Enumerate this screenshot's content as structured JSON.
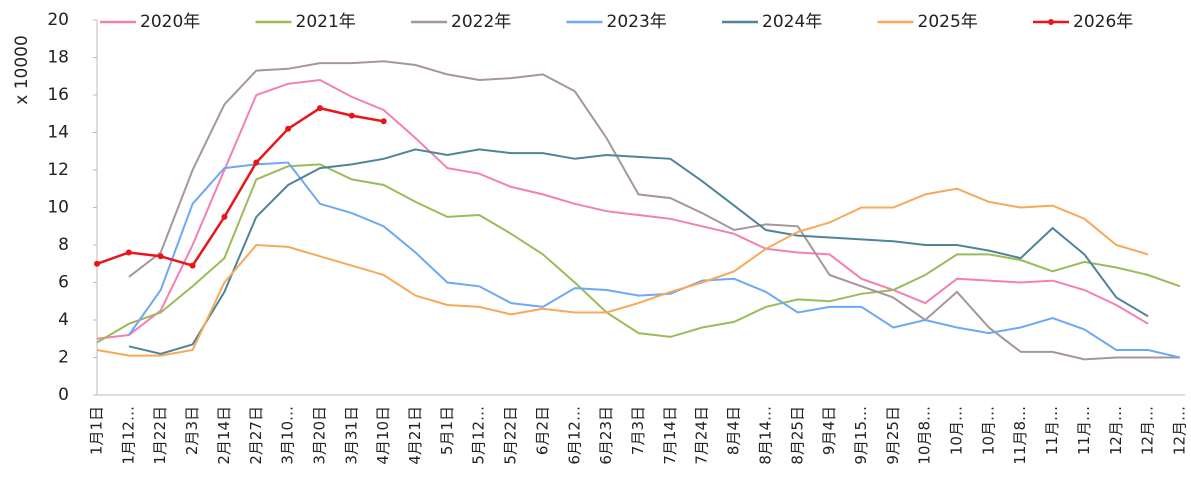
{
  "chart_data": {
    "type": "line",
    "y_axis_label": "x 10000",
    "categories": [
      "1月1日",
      "1月12…",
      "1月22日",
      "2月3日",
      "2月14日",
      "2月27日",
      "3月10…",
      "3月20日",
      "3月31日",
      "4月10日",
      "4月21日",
      "5月1日",
      "5月12…",
      "5月22日",
      "6月2日",
      "6月12…",
      "6月23日",
      "7月3日",
      "7月14日",
      "7月24日",
      "8月4日",
      "8月14…",
      "8月25日",
      "9月4日",
      "9月15…",
      "9月25日",
      "10月8…",
      "10月…",
      "10月…",
      "11月8…",
      "11月…",
      "11月…",
      "12月…",
      "12月…",
      "12月…"
    ],
    "series": [
      {
        "name": "2020年",
        "color": "#f47fb5",
        "markers": false,
        "values": [
          3.0,
          3.2,
          4.5,
          8.0,
          12.0,
          16.0,
          16.6,
          16.8,
          15.9,
          15.2,
          13.7,
          12.1,
          11.8,
          11.1,
          10.7,
          10.2,
          9.8,
          9.6,
          9.4,
          9.0,
          8.6,
          7.8,
          7.6,
          7.5,
          6.2,
          5.6,
          4.9,
          6.2,
          6.1,
          6.0,
          6.1,
          5.6,
          4.8,
          3.8,
          null
        ]
      },
      {
        "name": "2021年",
        "color": "#9bbb59",
        "markers": false,
        "values": [
          2.8,
          3.8,
          4.4,
          5.8,
          7.3,
          11.5,
          12.2,
          12.3,
          11.5,
          11.2,
          10.3,
          9.5,
          9.6,
          8.6,
          7.5,
          6.0,
          4.4,
          3.3,
          3.1,
          3.6,
          3.9,
          4.7,
          5.1,
          5.0,
          5.4,
          5.6,
          6.4,
          7.5,
          7.5,
          7.2,
          6.6,
          7.1,
          6.8,
          6.4,
          5.8
        ]
      },
      {
        "name": "2022年",
        "color": "#a6969b",
        "markers": false,
        "values": [
          null,
          6.3,
          7.6,
          12.0,
          15.5,
          17.3,
          17.4,
          17.7,
          17.7,
          17.8,
          17.6,
          17.1,
          16.8,
          16.9,
          17.1,
          16.2,
          13.7,
          10.7,
          10.5,
          9.7,
          8.8,
          9.1,
          9.0,
          6.4,
          5.8,
          5.2,
          4.0,
          5.5,
          3.6,
          2.3,
          2.3,
          1.9,
          2.0,
          2.0,
          2.0
        ]
      },
      {
        "name": "2023年",
        "color": "#6fa8f5",
        "markers": false,
        "values": [
          null,
          3.2,
          5.6,
          10.2,
          12.1,
          12.3,
          12.4,
          10.2,
          9.7,
          9.0,
          7.6,
          6.0,
          5.8,
          4.9,
          4.7,
          5.7,
          5.6,
          5.3,
          5.4,
          6.1,
          6.2,
          5.5,
          4.4,
          4.7,
          4.7,
          3.6,
          4.0,
          3.6,
          3.3,
          3.6,
          4.1,
          3.5,
          2.4,
          2.4,
          2.0
        ]
      },
      {
        "name": "2024年",
        "color": "#4e8597",
        "markers": false,
        "values": [
          null,
          2.6,
          2.2,
          2.7,
          5.5,
          9.5,
          11.2,
          12.1,
          12.3,
          12.6,
          13.1,
          12.8,
          13.1,
          12.9,
          12.9,
          12.6,
          12.8,
          12.7,
          12.6,
          11.4,
          10.1,
          8.8,
          8.5,
          8.4,
          8.3,
          8.2,
          8.0,
          8.0,
          7.7,
          7.3,
          8.9,
          7.5,
          5.2,
          4.2,
          null
        ]
      },
      {
        "name": "2025年",
        "color": "#f6a95a",
        "markers": false,
        "values": [
          2.4,
          2.1,
          2.1,
          2.4,
          6.0,
          8.0,
          7.9,
          7.4,
          6.9,
          6.4,
          5.3,
          4.8,
          4.7,
          4.3,
          4.6,
          4.4,
          4.4,
          4.9,
          5.5,
          6.0,
          6.6,
          7.8,
          8.7,
          9.2,
          10.0,
          10.0,
          10.7,
          11.0,
          10.3,
          10.0,
          10.1,
          9.4,
          8.0,
          7.5,
          null
        ]
      },
      {
        "name": "2026年",
        "color": "#e8151b",
        "markers": true,
        "values": [
          7.0,
          7.6,
          7.4,
          6.9,
          9.5,
          12.4,
          14.2,
          15.3,
          14.9,
          14.6,
          null,
          null,
          null,
          null,
          null,
          null,
          null,
          null,
          null,
          null,
          null,
          null,
          null,
          null,
          null,
          null,
          null,
          null,
          null,
          null,
          null,
          null,
          null,
          null,
          null
        ]
      }
    ],
    "ylim": [
      0,
      20
    ],
    "yticks": [
      0,
      2,
      4,
      6,
      8,
      10,
      12,
      14,
      16,
      18,
      20
    ],
    "grid": false,
    "legend": "top"
  }
}
